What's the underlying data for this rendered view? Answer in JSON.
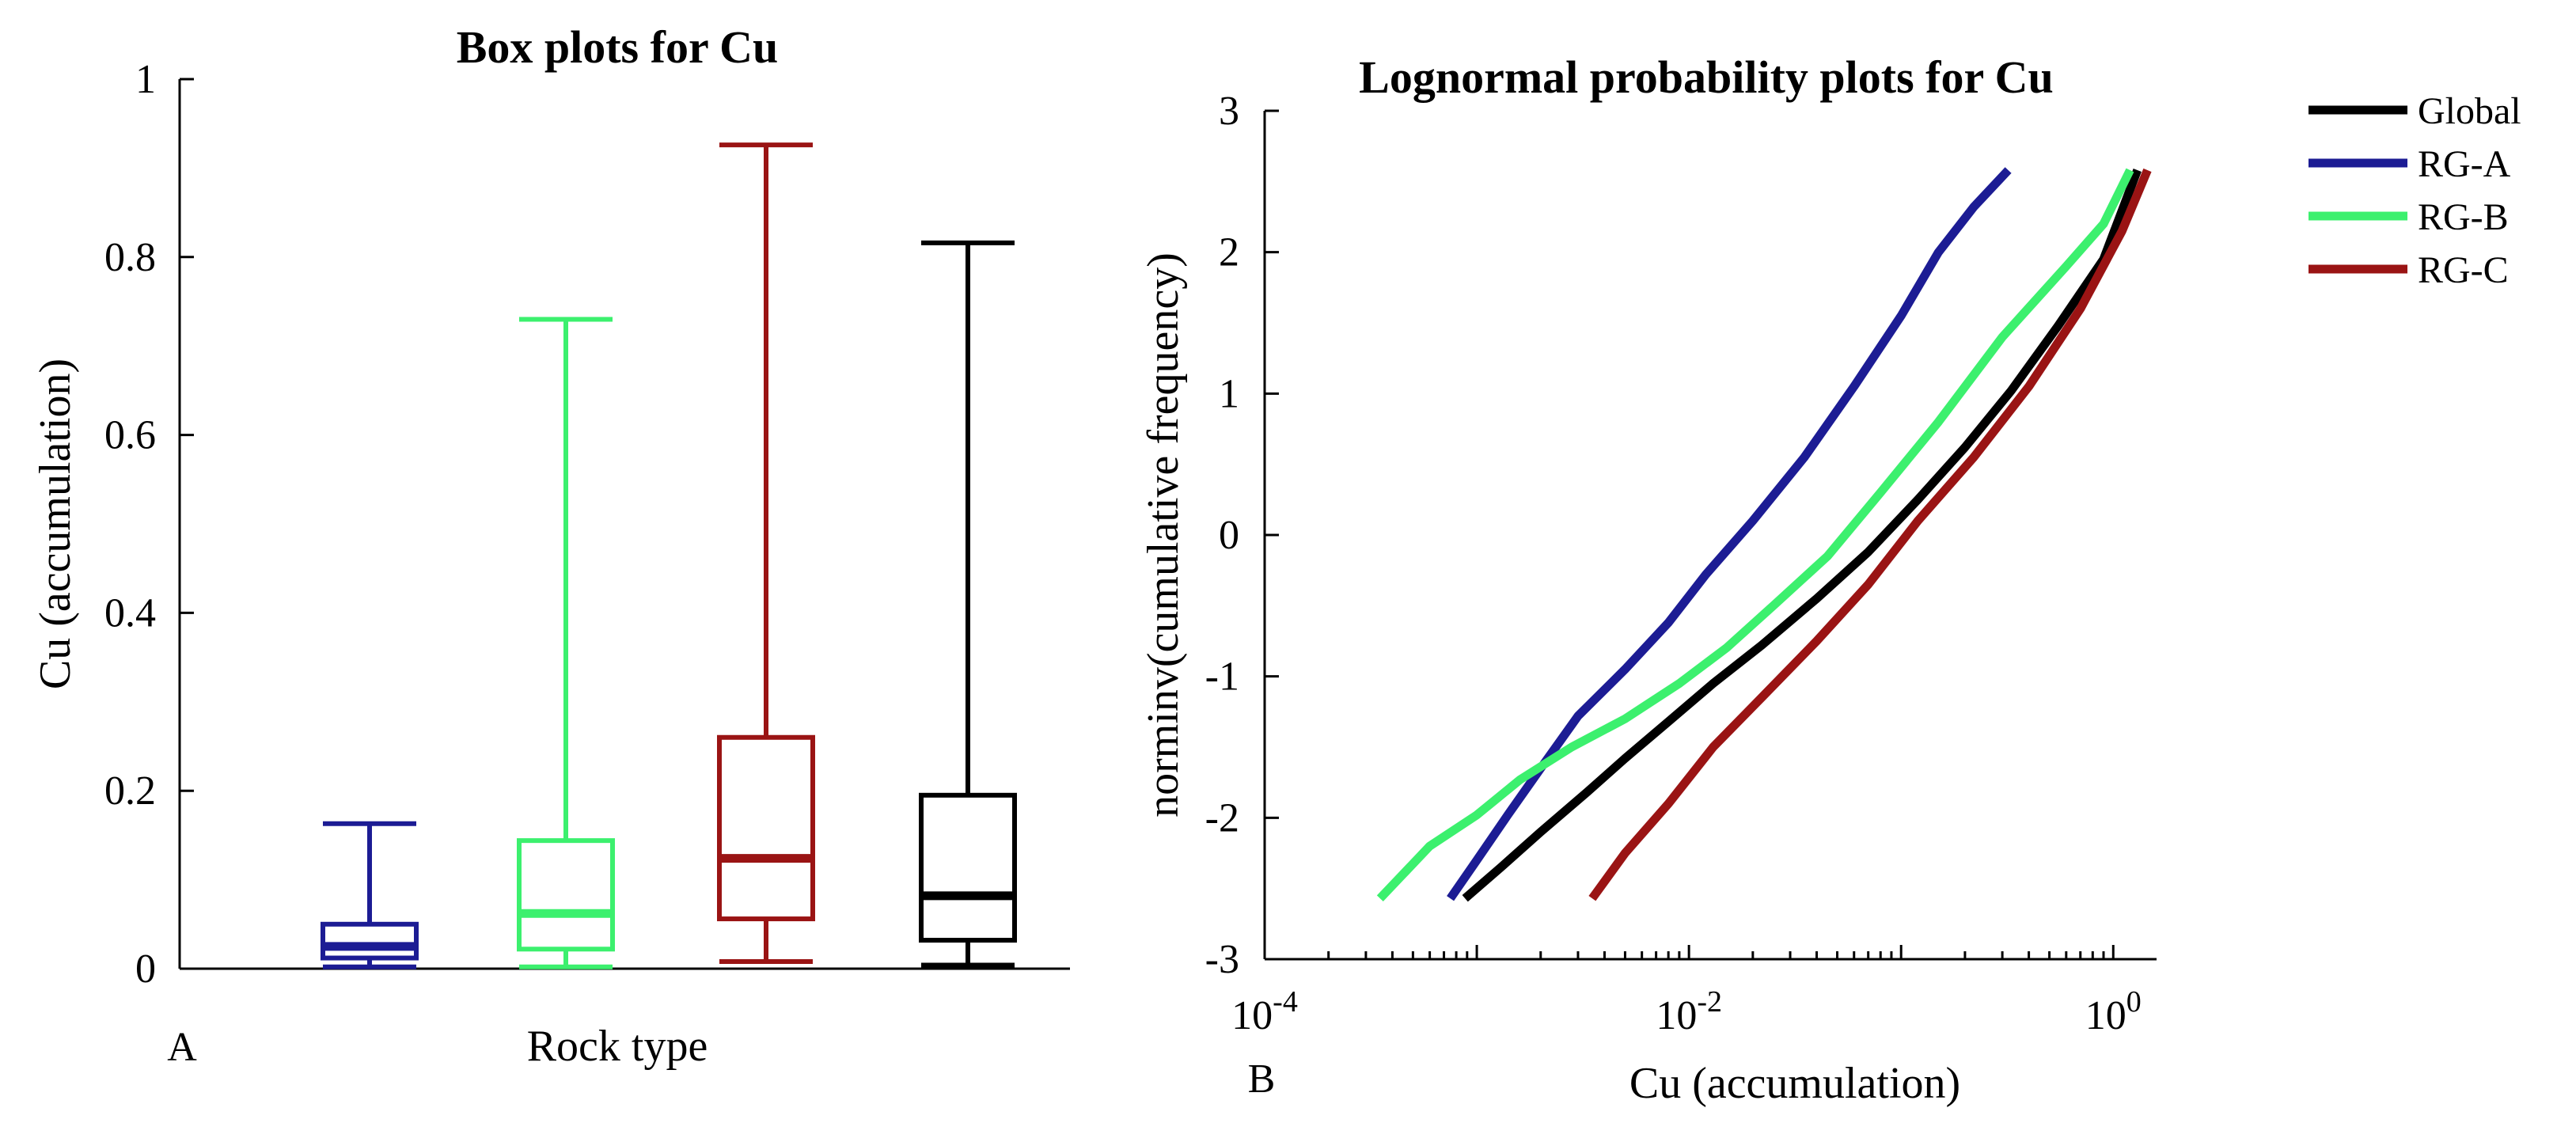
{
  "chart_data": [
    {
      "type": "box",
      "panel_label": "A",
      "title": "Box plots for Cu",
      "xlabel": "Rock type",
      "ylabel": "Cu (accumulation)",
      "ylim": [
        0,
        1
      ],
      "yticks": [
        "0",
        "0.2",
        "0.4",
        "0.6",
        "0.8",
        "1"
      ],
      "yticks_values": [
        0,
        0.2,
        0.4,
        0.6,
        0.8,
        1
      ],
      "boxes": [
        {
          "color": "#1c1c94",
          "min": 0.002,
          "q1": 0.012,
          "median": 0.025,
          "q3": 0.05,
          "max": 0.163
        },
        {
          "color": "#3cf06e",
          "min": 0.002,
          "q1": 0.022,
          "median": 0.062,
          "q3": 0.144,
          "max": 0.73
        },
        {
          "color": "#9a1414",
          "min": 0.008,
          "q1": 0.056,
          "median": 0.124,
          "q3": 0.26,
          "max": 0.926
        },
        {
          "color": "#000000",
          "min": 0.004,
          "q1": 0.032,
          "median": 0.082,
          "q3": 0.195,
          "max": 0.816
        }
      ]
    },
    {
      "type": "line",
      "panel_label": "B",
      "title": "Lognormal probability plots for Cu",
      "xlabel": "Cu (accumulation)",
      "ylabel": "norminv(cumulative frequency)",
      "xscale": "log",
      "xlim": [
        0.0001,
        1.6
      ],
      "ylim": [
        -3,
        3
      ],
      "xticks": [
        {
          "value": 0.0001,
          "base": "10",
          "exp": "-4"
        },
        {
          "value": 0.01,
          "base": "10",
          "exp": "-2"
        },
        {
          "value": 1,
          "base": "10",
          "exp": "0"
        }
      ],
      "yticks": [
        "-3",
        "-2",
        "-1",
        "0",
        "1",
        "2",
        "3"
      ],
      "yticks_values": [
        -3,
        -2,
        -1,
        0,
        1,
        2,
        3
      ],
      "legend_position": "outside-right",
      "series": [
        {
          "name": "Global",
          "color": "#000000",
          "x": [
            0.00088,
            0.0013,
            0.002,
            0.0033,
            0.005,
            0.008,
            0.013,
            0.022,
            0.04,
            0.07,
            0.12,
            0.2,
            0.33,
            0.55,
            0.9,
            1.3
          ],
          "y": [
            -2.57,
            -2.35,
            -2.1,
            -1.82,
            -1.58,
            -1.32,
            -1.05,
            -0.78,
            -0.45,
            -0.12,
            0.25,
            0.62,
            1.02,
            1.48,
            1.95,
            2.58
          ]
        },
        {
          "name": "RG-A",
          "color": "#1c1c94",
          "x": [
            0.00075,
            0.001,
            0.0014,
            0.002,
            0.003,
            0.005,
            0.008,
            0.012,
            0.02,
            0.035,
            0.06,
            0.1,
            0.15,
            0.22,
            0.32
          ],
          "y": [
            -2.57,
            -2.3,
            -1.98,
            -1.65,
            -1.28,
            -0.95,
            -0.62,
            -0.28,
            0.1,
            0.55,
            1.05,
            1.55,
            2.0,
            2.32,
            2.58
          ]
        },
        {
          "name": "RG-B",
          "color": "#3cf06e",
          "x": [
            0.00035,
            0.0006,
            0.001,
            0.0016,
            0.0028,
            0.005,
            0.009,
            0.015,
            0.025,
            0.045,
            0.08,
            0.15,
            0.3,
            0.6,
            0.9,
            1.2
          ],
          "y": [
            -2.57,
            -2.2,
            -1.98,
            -1.73,
            -1.5,
            -1.3,
            -1.05,
            -0.8,
            -0.5,
            -0.15,
            0.3,
            0.8,
            1.4,
            1.9,
            2.2,
            2.58
          ]
        },
        {
          "name": "RG-C",
          "color": "#9a1414",
          "x": [
            0.0035,
            0.005,
            0.008,
            0.013,
            0.022,
            0.04,
            0.07,
            0.12,
            0.22,
            0.4,
            0.7,
            1.1,
            1.45
          ],
          "y": [
            -2.57,
            -2.25,
            -1.9,
            -1.5,
            -1.15,
            -0.75,
            -0.35,
            0.1,
            0.55,
            1.05,
            1.6,
            2.15,
            2.58
          ]
        }
      ]
    }
  ]
}
